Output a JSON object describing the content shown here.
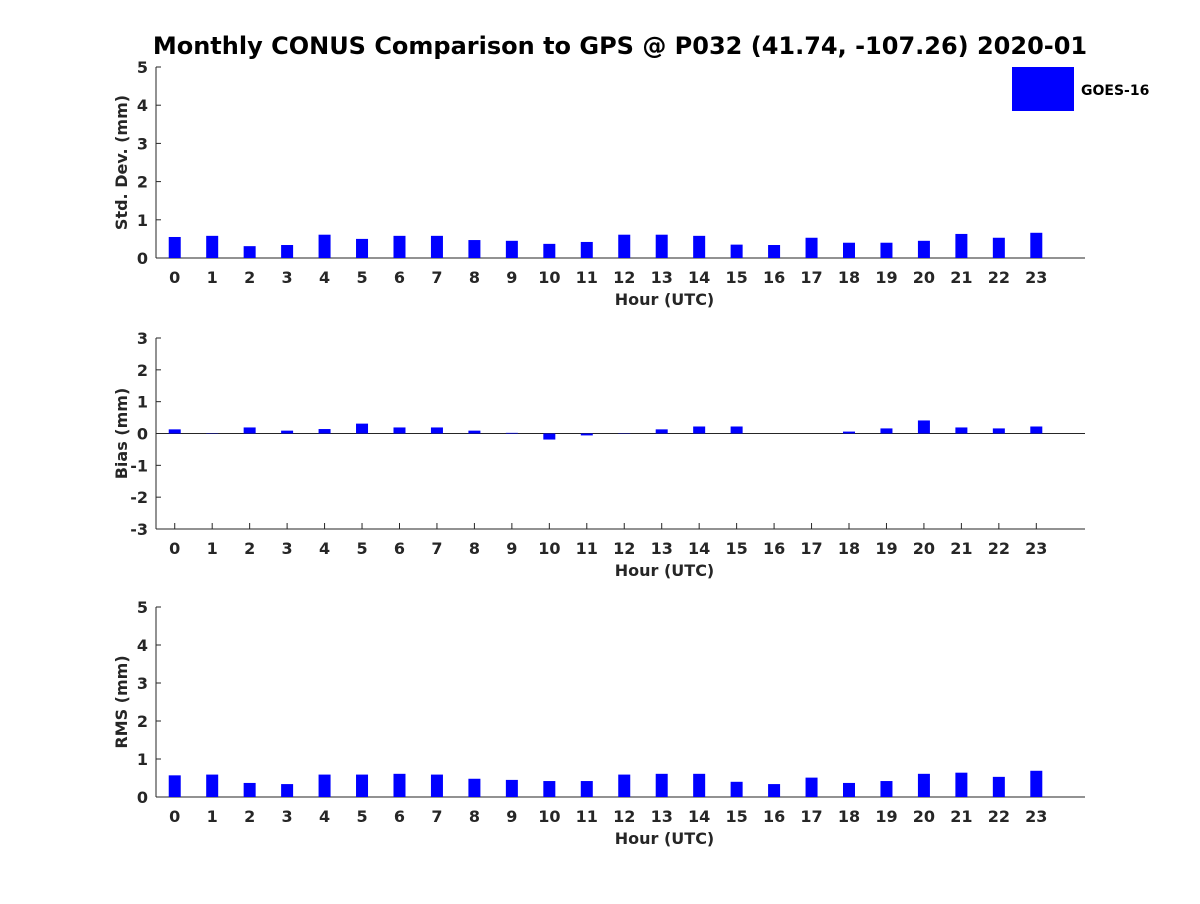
{
  "chart_data": {
    "title": "Monthly CONUS Comparison to GPS @ P032 (41.74, -107.26) 2020-01",
    "legend": [
      {
        "name": "GOES-16",
        "color": "#0000ff"
      }
    ],
    "legend_location": "top-right",
    "bar_color": "#0000ff",
    "panels": [
      {
        "type": "bar",
        "ylabel": "Std. Dev. (mm)",
        "xlabel": "Hour (UTC)",
        "ylim": [
          0,
          5
        ],
        "yticks": [
          "0",
          "1",
          "2",
          "3",
          "4",
          "5"
        ],
        "categories": [
          "0",
          "1",
          "2",
          "3",
          "4",
          "5",
          "6",
          "7",
          "8",
          "9",
          "10",
          "11",
          "12",
          "13",
          "14",
          "15",
          "16",
          "17",
          "18",
          "19",
          "20",
          "21",
          "22",
          "23"
        ],
        "series": [
          {
            "name": "GOES-16",
            "values": [
              0.55,
              0.58,
              0.31,
              0.34,
              0.61,
              0.5,
              0.58,
              0.58,
              0.47,
              0.45,
              0.37,
              0.42,
              0.61,
              0.61,
              0.58,
              0.35,
              0.34,
              0.53,
              0.4,
              0.4,
              0.45,
              0.63,
              0.53,
              0.66
            ]
          }
        ]
      },
      {
        "type": "bar",
        "ylabel": "Bias (mm)",
        "xlabel": "Hour (UTC)",
        "ylim": [
          -3,
          3
        ],
        "yticks": [
          "-3",
          "-2",
          "-1",
          "0",
          "1",
          "2",
          "3"
        ],
        "categories": [
          "0",
          "1",
          "2",
          "3",
          "4",
          "5",
          "6",
          "7",
          "8",
          "9",
          "10",
          "11",
          "12",
          "13",
          "14",
          "15",
          "16",
          "17",
          "18",
          "19",
          "20",
          "21",
          "22",
          "23"
        ],
        "series": [
          {
            "name": "GOES-16",
            "values": [
              0.13,
              0.01,
              0.19,
              0.09,
              0.14,
              0.31,
              0.19,
              0.19,
              0.09,
              0.02,
              -0.19,
              -0.06,
              0.01,
              0.13,
              0.22,
              0.22,
              0.0,
              0.0,
              0.06,
              0.16,
              0.41,
              0.19,
              0.16,
              0.22
            ]
          }
        ]
      },
      {
        "type": "bar",
        "ylabel": "RMS (mm)",
        "xlabel": "Hour (UTC)",
        "ylim": [
          0,
          5
        ],
        "yticks": [
          "0",
          "1",
          "2",
          "3",
          "4",
          "5"
        ],
        "categories": [
          "0",
          "1",
          "2",
          "3",
          "4",
          "5",
          "6",
          "7",
          "8",
          "9",
          "10",
          "11",
          "12",
          "13",
          "14",
          "15",
          "16",
          "17",
          "18",
          "19",
          "20",
          "21",
          "22",
          "23"
        ],
        "series": [
          {
            "name": "GOES-16",
            "values": [
              0.57,
              0.59,
              0.37,
              0.34,
              0.59,
              0.59,
              0.61,
              0.59,
              0.48,
              0.45,
              0.42,
              0.42,
              0.59,
              0.61,
              0.61,
              0.4,
              0.34,
              0.51,
              0.37,
              0.42,
              0.61,
              0.64,
              0.53,
              0.69
            ]
          }
        ]
      }
    ]
  }
}
